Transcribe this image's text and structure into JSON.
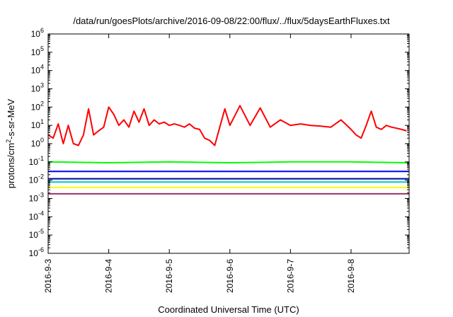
{
  "chart_data": {
    "type": "line",
    "title": "/data/run/goesPlots/archive/2016-09-08/22:00/flux/../flux/5daysEarthFluxes.txt",
    "xlabel": "Coordinated Universal Time (UTC)",
    "ylabel": "protons/cm2-s-sr-MeV",
    "ylabel_parts": {
      "base": "protons/cm",
      "sup": "2",
      "rest": "-s-sr-MeV"
    },
    "y_scale": "log",
    "ylim": [
      1e-06,
      1000000.0
    ],
    "y_tick_exponents": [
      -6,
      -5,
      -4,
      -3,
      -2,
      -1,
      0,
      1,
      2,
      3,
      4,
      5,
      6
    ],
    "xlim": [
      "2016-09-03 00:00",
      "2016-09-08 23:00"
    ],
    "x_ticks": [
      "2016-9-3",
      "2016-9-4",
      "2016-9-5",
      "2016-9-6",
      "2016-9-7",
      "2016-9-8"
    ],
    "grid": false,
    "legend": "none",
    "series": [
      {
        "color": "#ff0000",
        "x": [
          "2016-09-03 00:00",
          "2016-09-03 02:00",
          "2016-09-03 04:00",
          "2016-09-03 06:00",
          "2016-09-03 08:00",
          "2016-09-03 10:00",
          "2016-09-03 12:00",
          "2016-09-03 14:00",
          "2016-09-03 16:00",
          "2016-09-03 18:00",
          "2016-09-03 20:00",
          "2016-09-03 22:00",
          "2016-09-04 00:00",
          "2016-09-04 02:00",
          "2016-09-04 04:00",
          "2016-09-04 06:00",
          "2016-09-04 08:00",
          "2016-09-04 10:00",
          "2016-09-04 12:00",
          "2016-09-04 14:00",
          "2016-09-04 16:00",
          "2016-09-04 18:00",
          "2016-09-04 20:00",
          "2016-09-04 22:00",
          "2016-09-05 00:00",
          "2016-09-05 02:00",
          "2016-09-05 04:00",
          "2016-09-05 06:00",
          "2016-09-05 08:00",
          "2016-09-05 10:00",
          "2016-09-05 12:00",
          "2016-09-05 14:00",
          "2016-09-05 16:00",
          "2016-09-05 18:00",
          "2016-09-05 20:00",
          "2016-09-05 22:00",
          "2016-09-06 00:00",
          "2016-09-06 04:00",
          "2016-09-06 08:00",
          "2016-09-06 12:00",
          "2016-09-06 16:00",
          "2016-09-06 20:00",
          "2016-09-07 00:00",
          "2016-09-07 04:00",
          "2016-09-07 08:00",
          "2016-09-07 12:00",
          "2016-09-07 16:00",
          "2016-09-07 20:00",
          "2016-09-08 00:00",
          "2016-09-08 02:00",
          "2016-09-08 04:00",
          "2016-09-08 06:00",
          "2016-09-08 08:00",
          "2016-09-08 10:00",
          "2016-09-08 12:00",
          "2016-09-08 14:00",
          "2016-09-08 16:00",
          "2016-09-08 18:00",
          "2016-09-08 20:00",
          "2016-09-08 22:00"
        ],
        "values": [
          3,
          2,
          12,
          1,
          10,
          1,
          0.8,
          3,
          80,
          3,
          5,
          8,
          100,
          40,
          10,
          20,
          8,
          60,
          15,
          80,
          10,
          20,
          12,
          15,
          10,
          12,
          10,
          8,
          12,
          7,
          6,
          2,
          1.5,
          0.8,
          8,
          80,
          10,
          120,
          10,
          90,
          8,
          20,
          10,
          12,
          10,
          9,
          8,
          20,
          6,
          3,
          2,
          10,
          60,
          8,
          6,
          10,
          8,
          7,
          6,
          5
        ]
      },
      {
        "color": "#00ff00",
        "x": [
          "2016-09-03",
          "2016-09-04",
          "2016-09-05",
          "2016-09-06",
          "2016-09-07",
          "2016-09-08",
          "2016-09-08 23:00"
        ],
        "values": [
          0.1,
          0.09,
          0.1,
          0.09,
          0.1,
          0.1,
          0.09
        ]
      },
      {
        "color": "#0000ff",
        "x": [
          "2016-09-03",
          "2016-09-04",
          "2016-09-05",
          "2016-09-06",
          "2016-09-07",
          "2016-09-08",
          "2016-09-08 23:00"
        ],
        "values": [
          0.03,
          0.03,
          0.03,
          0.03,
          0.03,
          0.03,
          0.03
        ]
      },
      {
        "color": "#000099",
        "x": [
          "2016-09-03",
          "2016-09-04",
          "2016-09-05",
          "2016-09-06",
          "2016-09-07",
          "2016-09-08",
          "2016-09-08 23:00"
        ],
        "values": [
          0.012,
          0.012,
          0.012,
          0.012,
          0.012,
          0.012,
          0.012
        ]
      },
      {
        "color": "#00cccc",
        "x": [
          "2016-09-03",
          "2016-09-04",
          "2016-09-05",
          "2016-09-06",
          "2016-09-07",
          "2016-09-08",
          "2016-09-08 23:00"
        ],
        "values": [
          0.008,
          0.008,
          0.008,
          0.008,
          0.008,
          0.008,
          0.008
        ]
      },
      {
        "color": "#ffff00",
        "x": [
          "2016-09-03",
          "2016-09-04",
          "2016-09-05",
          "2016-09-06",
          "2016-09-07",
          "2016-09-08",
          "2016-09-08 23:00"
        ],
        "values": [
          0.004,
          0.004,
          0.004,
          0.004,
          0.004,
          0.004,
          0.004
        ]
      },
      {
        "color": "#993366",
        "x": [
          "2016-09-03",
          "2016-09-04",
          "2016-09-05",
          "2016-09-06",
          "2016-09-07",
          "2016-09-08",
          "2016-09-08 23:00"
        ],
        "values": [
          0.0018,
          0.0018,
          0.0018,
          0.0018,
          0.0018,
          0.0018,
          0.0018
        ]
      }
    ]
  }
}
